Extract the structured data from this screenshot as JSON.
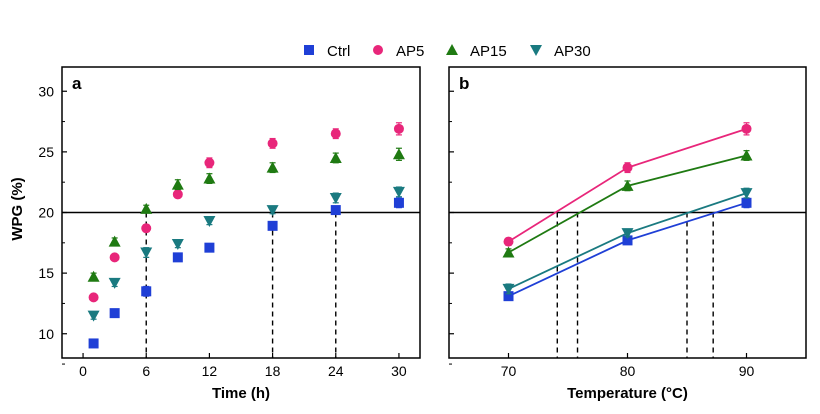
{
  "legend": [
    {
      "name": "Ctrl",
      "color": "#1f3fd6",
      "marker": "square"
    },
    {
      "name": "AP5",
      "color": "#e8267a",
      "marker": "circle"
    },
    {
      "name": "AP15",
      "color": "#1f7a12",
      "marker": "triangle-up"
    },
    {
      "name": "AP30",
      "color": "#1a7a80",
      "marker": "triangle-down"
    }
  ],
  "reference_line": 20,
  "chart_data": [
    {
      "type": "scatter",
      "panel_label": "a",
      "xlabel": "Time (h)",
      "ylabel": "WPG (%)",
      "xlim": [
        -2,
        32
      ],
      "ylim": [
        8,
        32
      ],
      "xticks": [
        0,
        6,
        12,
        18,
        24,
        30
      ],
      "yticks": [
        10,
        15,
        20,
        25,
        30
      ],
      "vlines": [
        6,
        18,
        24
      ],
      "series": [
        {
          "name": "Ctrl",
          "x": [
            1,
            3,
            6,
            9,
            12,
            18,
            24,
            30
          ],
          "y": [
            9.2,
            11.7,
            13.5,
            16.3,
            17.1,
            18.9,
            20.2,
            20.8
          ],
          "err": [
            0.2,
            0.2,
            0.4,
            0.3,
            0.3,
            0.3,
            0.3,
            0.4
          ]
        },
        {
          "name": "AP5",
          "x": [
            1,
            3,
            6,
            9,
            12,
            18,
            24,
            30
          ],
          "y": [
            13.0,
            16.3,
            18.7,
            21.5,
            24.1,
            25.7,
            26.5,
            26.9
          ],
          "err": [
            0.2,
            0.2,
            0.3,
            0.3,
            0.4,
            0.4,
            0.4,
            0.5
          ]
        },
        {
          "name": "AP15",
          "x": [
            1,
            3,
            6,
            9,
            12,
            18,
            24,
            30
          ],
          "y": [
            14.7,
            17.6,
            20.3,
            22.3,
            22.8,
            23.7,
            24.5,
            24.8
          ],
          "err": [
            0.3,
            0.3,
            0.3,
            0.4,
            0.4,
            0.4,
            0.4,
            0.5
          ]
        },
        {
          "name": "AP30",
          "x": [
            1,
            3,
            6,
            9,
            12,
            18,
            24,
            30
          ],
          "y": [
            11.5,
            14.2,
            16.7,
            17.4,
            19.3,
            20.2,
            21.2,
            21.7
          ],
          "err": [
            0.3,
            0.3,
            0.4,
            0.3,
            0.3,
            0.3,
            0.4,
            0.4
          ]
        }
      ]
    },
    {
      "type": "line",
      "panel_label": "b",
      "xlabel": "Temperature (°C)",
      "ylabel": "",
      "xlim": [
        65,
        95
      ],
      "ylim": [
        8,
        32
      ],
      "xticks": [
        70,
        80,
        90
      ],
      "yticks": [
        10,
        15,
        20,
        25,
        30
      ],
      "vlines": [
        74.1,
        75.8,
        85.0,
        87.2
      ],
      "series": [
        {
          "name": "Ctrl",
          "x": [
            70,
            80,
            90
          ],
          "y": [
            13.1,
            17.7,
            20.8
          ],
          "err": [
            0.3,
            0.3,
            0.4
          ]
        },
        {
          "name": "AP5",
          "x": [
            70,
            80,
            90
          ],
          "y": [
            17.6,
            23.7,
            26.9
          ],
          "err": [
            0.3,
            0.4,
            0.5
          ]
        },
        {
          "name": "AP15",
          "x": [
            70,
            80,
            90
          ],
          "y": [
            16.7,
            22.2,
            24.7
          ],
          "err": [
            0.3,
            0.4,
            0.4
          ]
        },
        {
          "name": "AP30",
          "x": [
            70,
            80,
            90
          ],
          "y": [
            13.7,
            18.3,
            21.6
          ],
          "err": [
            0.4,
            0.3,
            0.4
          ]
        }
      ]
    }
  ]
}
